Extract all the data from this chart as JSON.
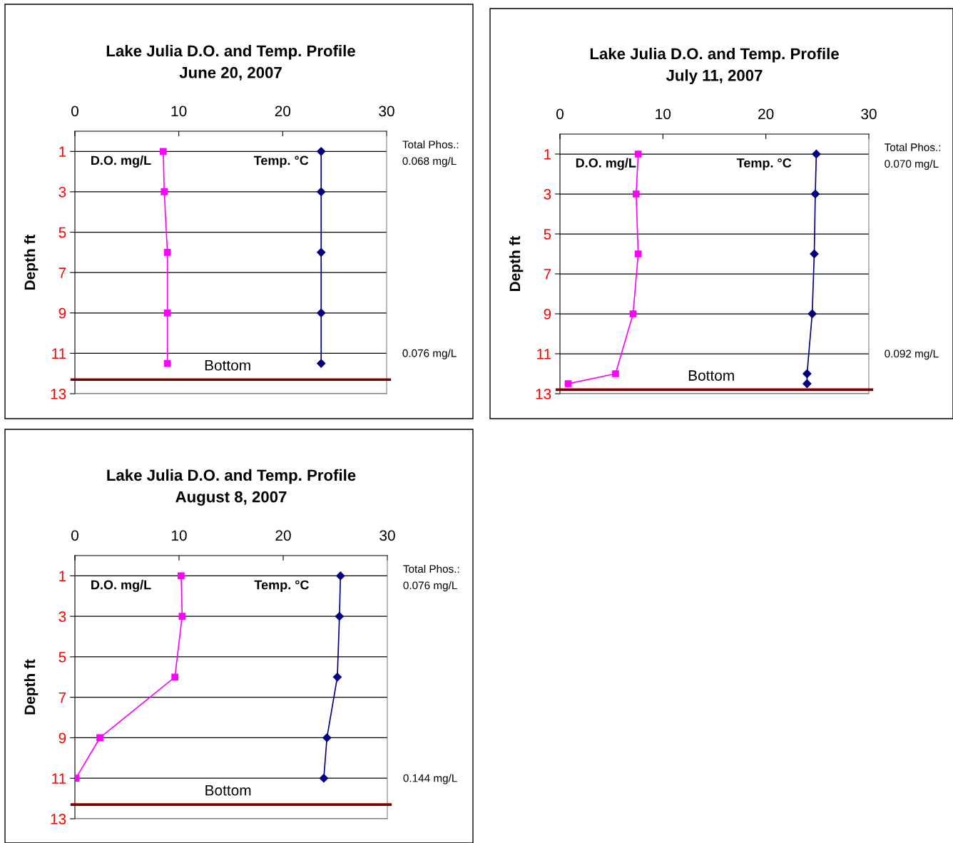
{
  "chart_data": [
    {
      "type": "line",
      "title": "Lake Julia D.O. and Temp. Profile",
      "subtitle": "June 20, 2007",
      "ylabel": "Depth ft",
      "xlim": [
        0,
        30
      ],
      "xticks": [
        0,
        10,
        20,
        30
      ],
      "ylim": [
        13,
        0
      ],
      "yticks": [
        1,
        3,
        5,
        7,
        9,
        11,
        13
      ],
      "grid": "y",
      "legend": false,
      "series": [
        {
          "name": "D.O. mg/L",
          "color": "#ff00ff",
          "marker": "square",
          "x": [
            8.5,
            8.6,
            8.9,
            8.9,
            8.9
          ],
          "values": [
            1,
            3,
            6,
            9,
            11.5
          ]
        },
        {
          "name": "Temp. °C",
          "color": "#000080",
          "marker": "diamond",
          "x": [
            23.7,
            23.7,
            23.7,
            23.7,
            23.7
          ],
          "values": [
            1,
            3,
            6,
            9,
            11.5
          ]
        }
      ],
      "ref_lines": [
        {
          "axis": "y",
          "value": 12.3,
          "label": "Bottom",
          "color": "#800000"
        }
      ],
      "annotations": [
        "Total Phos.:\n0.068 mg/L",
        "0.076 mg/L"
      ]
    },
    {
      "type": "line",
      "title": "Lake Julia D.O. and Temp. Profile",
      "subtitle": "July 11, 2007",
      "ylabel": "Depth ft",
      "xlim": [
        0,
        30
      ],
      "xticks": [
        0,
        10,
        20,
        30
      ],
      "ylim": [
        13,
        0
      ],
      "yticks": [
        1,
        3,
        5,
        7,
        9,
        11,
        13
      ],
      "grid": "y",
      "legend": false,
      "series": [
        {
          "name": "D.O. mg/L",
          "color": "#ff00ff",
          "marker": "square",
          "x": [
            7.6,
            7.4,
            7.6,
            7.1,
            5.4,
            0.8
          ],
          "values": [
            1,
            3,
            6,
            9,
            12,
            12.5
          ]
        },
        {
          "name": "Temp. °C",
          "color": "#000080",
          "marker": "diamond",
          "x": [
            24.9,
            24.8,
            24.7,
            24.5,
            24.0,
            24.0
          ],
          "values": [
            1,
            3,
            6,
            9,
            12,
            12.5
          ]
        }
      ],
      "ref_lines": [
        {
          "axis": "y",
          "value": 12.8,
          "label": "Bottom",
          "color": "#800000"
        }
      ],
      "annotations": [
        "Total Phos.:\n0.070 mg/L",
        "0.092 mg/L"
      ]
    },
    {
      "type": "line",
      "title": "Lake Julia D.O. and Temp. Profile",
      "subtitle": "August 8, 2007",
      "ylabel": "Depth ft",
      "xlim": [
        0,
        30
      ],
      "xticks": [
        0,
        10,
        20,
        30
      ],
      "ylim": [
        13,
        0
      ],
      "yticks": [
        1,
        3,
        5,
        7,
        9,
        11,
        13
      ],
      "grid": "y",
      "legend": false,
      "series": [
        {
          "name": "D.O. mg/L",
          "color": "#ff00ff",
          "marker": "square",
          "x": [
            10.2,
            10.3,
            9.6,
            2.4,
            0.1
          ],
          "values": [
            1,
            3,
            6,
            9,
            11
          ]
        },
        {
          "name": "Temp. °C",
          "color": "#000080",
          "marker": "diamond",
          "x": [
            25.5,
            25.4,
            25.2,
            24.2,
            23.9
          ],
          "values": [
            1,
            3,
            6,
            9,
            11
          ]
        }
      ],
      "ref_lines": [
        {
          "axis": "y",
          "value": 12.3,
          "label": "Bottom",
          "color": "#800000"
        }
      ],
      "annotations": [
        "Total Phos.:\n0.076 mg/L",
        "0.144 mg/L"
      ]
    }
  ]
}
